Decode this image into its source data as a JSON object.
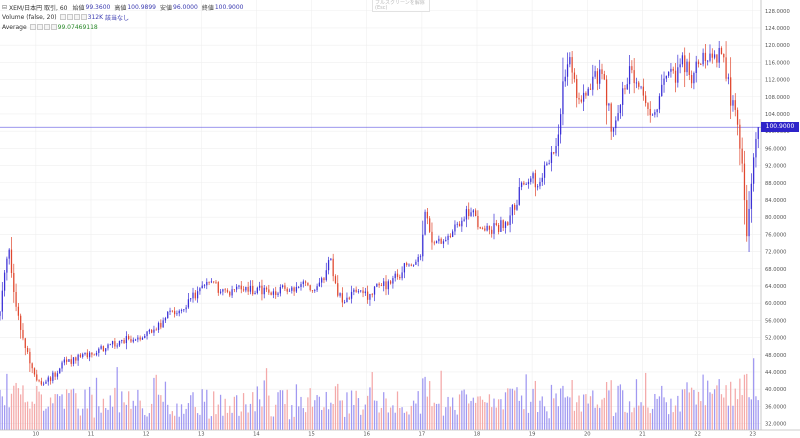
{
  "header": {
    "symbol": "XEM/日本円 取引, 60",
    "ohlc": [
      {
        "k": "始値",
        "v": "99.3600"
      },
      {
        "k": "高値",
        "v": "100.9899"
      },
      {
        "k": "安値",
        "v": "96.0000"
      },
      {
        "k": "終値",
        "v": "100.9000"
      }
    ],
    "volume_label": "Volume (false, 20)",
    "volume_value": "312K",
    "volume_extra": "該当なし",
    "average_label": "Average",
    "average_value": "99.07469118"
  },
  "overlay": {
    "line1": "フルスクリーンを解除",
    "line2": "(Esc)"
  },
  "last_price": "100.9000",
  "colors": {
    "up": "#3a2fd6",
    "down": "#e0472e",
    "vol_up": "#8f86ef",
    "vol_down": "#f29a9a",
    "price_line": "#5a50e0",
    "grid": "#efefef"
  },
  "chart_data": {
    "type": "candlestick",
    "y_axis_ticks": [
      "128.0000",
      "124.0000",
      "120.0000",
      "116.0000",
      "112.0000",
      "108.0000",
      "104.0000",
      "100.0000",
      "96.0000",
      "92.0000",
      "88.0000",
      "84.0000",
      "80.0000",
      "76.0000",
      "72.0000",
      "68.0000",
      "64.0000",
      "60.0000",
      "56.0000",
      "52.0000",
      "48.0000",
      "44.0000",
      "40.0000",
      "36.0000",
      "32.0000"
    ],
    "ylim": [
      30.5,
      130.5
    ],
    "x_axis_ticks": [
      "10",
      "11",
      "12",
      "13",
      "14",
      "15",
      "16",
      "17",
      "18",
      "19",
      "20",
      "21",
      "22",
      "23"
    ],
    "x_range_days": [
      9.35,
      23.15
    ],
    "anchors": [
      [
        9.35,
        58,
        0
      ],
      [
        9.42,
        67,
        0
      ],
      [
        9.5,
        73,
        0
      ],
      [
        9.6,
        62,
        0
      ],
      [
        9.7,
        55,
        0
      ],
      [
        9.85,
        48,
        0
      ],
      [
        10.0,
        43,
        0
      ],
      [
        10.15,
        41,
        0
      ],
      [
        10.3,
        43,
        0
      ],
      [
        10.5,
        46,
        0
      ],
      [
        10.7,
        47,
        0
      ],
      [
        10.9,
        48,
        0
      ],
      [
        11.1,
        49,
        0
      ],
      [
        11.3,
        50,
        0
      ],
      [
        11.5,
        51,
        0
      ],
      [
        11.75,
        52,
        0
      ],
      [
        12.0,
        53,
        0
      ],
      [
        12.2,
        54,
        0
      ],
      [
        12.45,
        58,
        0
      ],
      [
        12.7,
        59,
        0
      ],
      [
        12.9,
        62,
        0
      ],
      [
        13.05,
        64,
        0
      ],
      [
        13.2,
        64,
        0
      ],
      [
        13.4,
        63,
        0
      ],
      [
        13.6,
        63,
        0
      ],
      [
        13.8,
        64,
        0
      ],
      [
        14.0,
        63,
        0
      ],
      [
        14.2,
        63,
        0
      ],
      [
        14.45,
        63,
        0
      ],
      [
        14.7,
        64,
        0
      ],
      [
        14.9,
        64,
        0
      ],
      [
        15.1,
        64,
        0
      ],
      [
        15.25,
        66,
        0
      ],
      [
        15.35,
        71,
        0
      ],
      [
        15.45,
        62,
        0
      ],
      [
        15.6,
        60,
        0
      ],
      [
        15.75,
        62,
        0
      ],
      [
        15.9,
        62,
        0
      ],
      [
        16.05,
        62,
        0
      ],
      [
        16.2,
        64,
        0
      ],
      [
        16.35,
        64,
        0
      ],
      [
        16.5,
        66,
        0
      ],
      [
        16.6,
        67,
        0
      ],
      [
        16.7,
        70,
        0
      ],
      [
        16.85,
        70,
        0
      ],
      [
        17.0,
        71,
        0
      ],
      [
        17.05,
        82,
        0
      ],
      [
        17.15,
        76,
        0
      ],
      [
        17.3,
        74,
        0
      ],
      [
        17.45,
        76,
        0
      ],
      [
        17.6,
        77,
        0
      ],
      [
        17.75,
        80,
        0
      ],
      [
        17.9,
        82,
        0
      ],
      [
        18.0,
        79,
        0
      ],
      [
        18.2,
        77,
        0
      ],
      [
        18.4,
        78,
        0
      ],
      [
        18.55,
        79,
        0
      ],
      [
        18.7,
        83,
        0
      ],
      [
        18.8,
        88,
        0
      ],
      [
        18.95,
        89,
        0
      ],
      [
        19.1,
        88,
        0
      ],
      [
        19.2,
        90,
        0
      ],
      [
        19.35,
        94,
        0
      ],
      [
        19.45,
        96,
        0
      ],
      [
        19.55,
        110,
        0
      ],
      [
        19.65,
        118,
        0
      ],
      [
        19.75,
        112,
        0
      ],
      [
        19.85,
        106,
        0
      ],
      [
        19.95,
        108,
        0
      ],
      [
        20.05,
        109,
        0
      ],
      [
        20.15,
        112,
        0
      ],
      [
        20.25,
        114,
        0
      ],
      [
        20.35,
        108,
        0
      ],
      [
        20.45,
        100,
        0
      ],
      [
        20.55,
        104,
        0
      ],
      [
        20.65,
        110,
        0
      ],
      [
        20.75,
        114,
        0
      ],
      [
        20.85,
        113,
        0
      ],
      [
        20.95,
        110,
        0
      ],
      [
        21.05,
        105,
        0
      ],
      [
        21.15,
        103,
        0
      ],
      [
        21.3,
        108,
        0
      ],
      [
        21.45,
        114,
        0
      ],
      [
        21.6,
        113,
        0
      ],
      [
        21.75,
        116,
        0
      ],
      [
        21.9,
        112,
        0
      ],
      [
        22.05,
        116,
        0
      ],
      [
        22.2,
        116,
        0
      ],
      [
        22.35,
        118,
        0
      ],
      [
        22.45,
        116,
        0
      ],
      [
        22.55,
        112,
        0
      ],
      [
        22.6,
        108,
        0
      ],
      [
        22.7,
        103,
        0
      ],
      [
        22.8,
        95,
        0
      ],
      [
        22.85,
        85,
        0
      ],
      [
        22.9,
        74,
        0
      ],
      [
        22.95,
        85,
        0
      ],
      [
        23.0,
        93,
        0
      ],
      [
        23.05,
        98,
        0
      ],
      [
        23.1,
        101,
        0
      ]
    ],
    "volume_series": "relative volume heights follow the printed bars; tallest near 19.5, 22.8",
    "last_close": 100.9
  }
}
